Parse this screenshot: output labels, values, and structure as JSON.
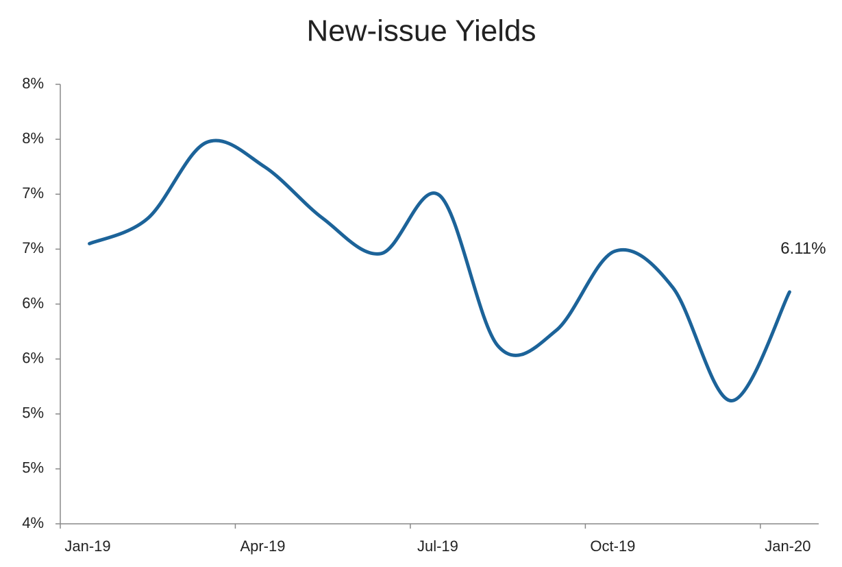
{
  "chart_data": {
    "type": "line",
    "title": "New-issue Yields",
    "x": [
      0.5,
      1.5,
      2.5,
      3.5,
      4.5,
      5.5,
      6.5,
      7.5,
      8.5,
      9.5,
      10.5,
      11.5,
      12.5
    ],
    "series": [
      {
        "name": "New-issue Yields",
        "color": "#1c6399",
        "values": [
          6.55,
          6.78,
          7.47,
          7.25,
          6.78,
          6.46,
          6.99,
          5.62,
          5.76,
          6.48,
          6.15,
          5.12,
          6.11
        ],
        "value_labels": [
          null,
          null,
          null,
          null,
          null,
          null,
          null,
          null,
          null,
          null,
          null,
          null,
          "6.11%"
        ]
      }
    ],
    "xlim": [
      0,
      13
    ],
    "xticks": [
      {
        "value": 0,
        "label": "Jan-19"
      },
      {
        "value": 3,
        "label": "Apr-19"
      },
      {
        "value": 6,
        "label": "Jul-19"
      },
      {
        "value": 9,
        "label": "Oct-19"
      },
      {
        "value": 12,
        "label": "Jan-20"
      }
    ],
    "ylim": [
      4,
      8
    ],
    "yticks": [
      {
        "value": 4,
        "label": "4%"
      },
      {
        "value": 4.5,
        "label": "5%"
      },
      {
        "value": 5,
        "label": "5%"
      },
      {
        "value": 5.5,
        "label": "6%"
      },
      {
        "value": 6,
        "label": "6%"
      },
      {
        "value": 6.5,
        "label": "7%"
      },
      {
        "value": 7,
        "label": "7%"
      },
      {
        "value": 7.5,
        "label": "8%"
      },
      {
        "value": 8,
        "label": "8%"
      }
    ],
    "grid": false
  }
}
